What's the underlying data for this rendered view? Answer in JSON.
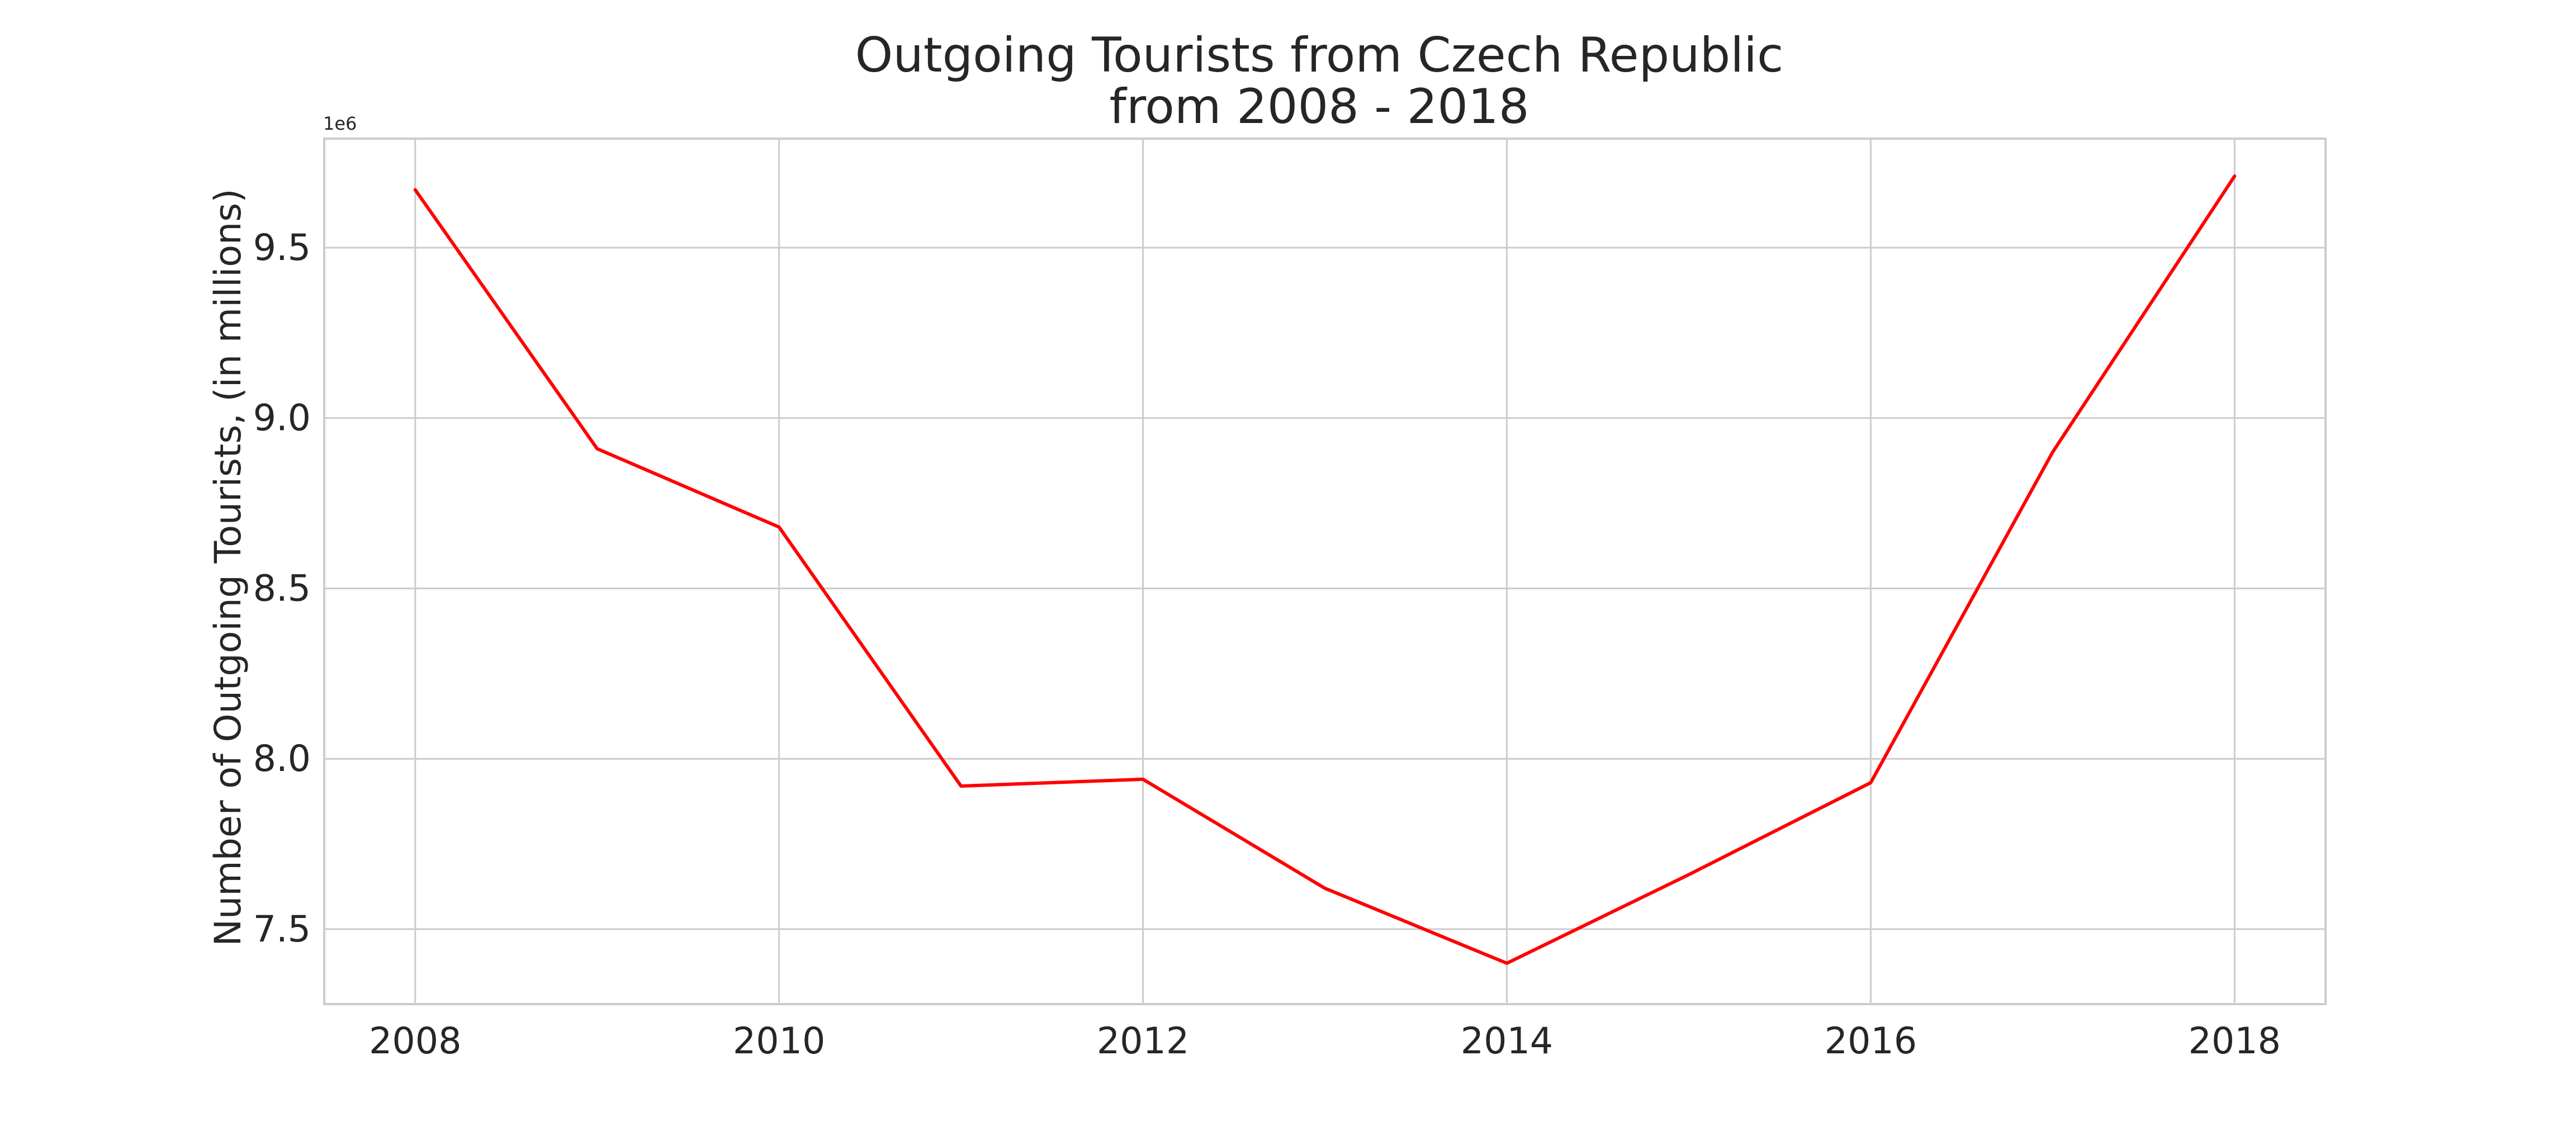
{
  "chart_data": {
    "type": "line",
    "title_lines": [
      "Outgoing Tourists from Czech Republic",
      "from 2008 - 2018"
    ],
    "xlabel": "",
    "ylabel": "Number of Outgoing Tourists, (in millions)",
    "y_offset_label": "1e6",
    "x": [
      2008,
      2009,
      2010,
      2011,
      2012,
      2013,
      2014,
      2015,
      2016,
      2017,
      2018
    ],
    "xlim": [
      2007.5,
      2018.5
    ],
    "ylim": [
      7.28,
      9.82
    ],
    "x_ticks": [
      2008,
      2010,
      2012,
      2014,
      2016,
      2018
    ],
    "x_tick_labels": [
      "2008",
      "2010",
      "2012",
      "2014",
      "2016",
      "2018"
    ],
    "y_ticks": [
      7.5,
      8.0,
      8.5,
      9.0,
      9.5
    ],
    "y_tick_labels": [
      "7.5",
      "8.0",
      "8.5",
      "9.0",
      "9.5"
    ],
    "grid": true,
    "series": [
      {
        "values": [
          9.67,
          8.91,
          8.68,
          7.92,
          7.94,
          7.62,
          7.4,
          7.66,
          7.93,
          8.9,
          9.71
        ],
        "color": "#ff0000"
      }
    ]
  }
}
